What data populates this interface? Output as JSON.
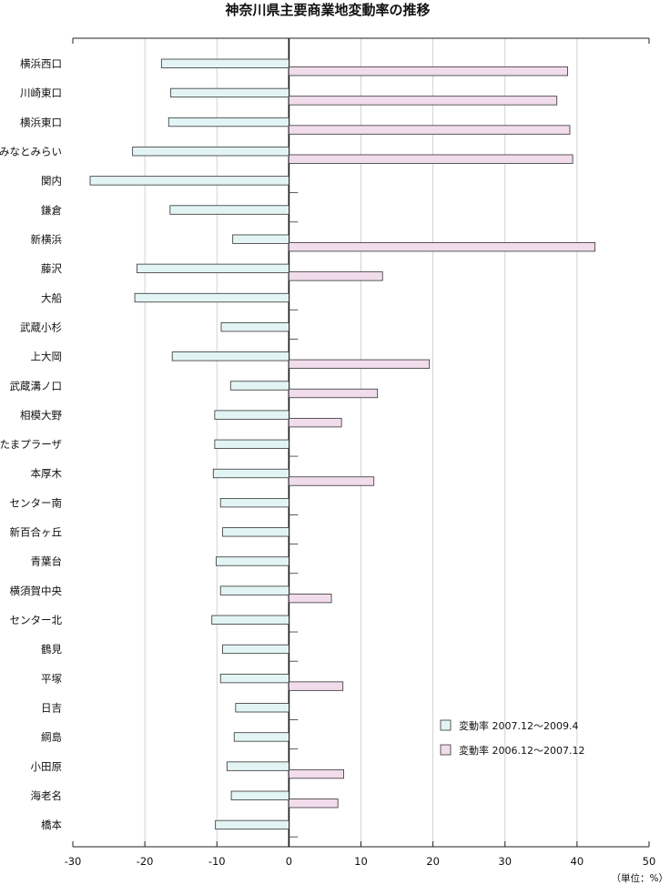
{
  "chart_data": {
    "type": "bar",
    "orientation": "horizontal",
    "title": "神奈川県主要商業地変動率の推移",
    "unit_label": "（単位：%）",
    "categories": [
      "横浜西口",
      "川崎東口",
      "横浜東口",
      "みなとみらい",
      "関内",
      "鎌倉",
      "新横浜",
      "藤沢",
      "大船",
      "武蔵小杉",
      "上大岡",
      "武蔵溝ノ口",
      "相模大野",
      "たまプラーザ",
      "本厚木",
      "センター南",
      "新百合ヶ丘",
      "青葉台",
      "横須賀中央",
      "センター北",
      "鶴見",
      "平塚",
      "日吉",
      "綱島",
      "小田原",
      "海老名",
      "橋本"
    ],
    "series": [
      {
        "name": "変動率 2007.12～2009.4",
        "color": "#e3f4f4",
        "values": [
          -17.7,
          -16.4,
          -16.7,
          -21.7,
          -27.6,
          -16.5,
          -7.8,
          -21.1,
          -21.4,
          -9.4,
          -16.2,
          -8.1,
          -10.3,
          -10.3,
          -10.5,
          -9.5,
          -9.2,
          -10.1,
          -9.5,
          -10.7,
          -9.2,
          -9.5,
          -7.4,
          -7.6,
          -8.6,
          -8.0,
          -10.2
        ]
      },
      {
        "name": "変動率 2006.12～2007.12",
        "color": "#f1dcec",
        "values": [
          38.7,
          37.2,
          39.0,
          39.4,
          0,
          0,
          42.5,
          13.0,
          0,
          0,
          19.5,
          12.3,
          7.3,
          0,
          11.8,
          0,
          0,
          0,
          5.9,
          0,
          0,
          7.5,
          0,
          0,
          7.6,
          6.8,
          0
        ]
      }
    ],
    "xlim": [
      -30,
      50
    ],
    "xticks": [
      -30,
      -20,
      -10,
      0,
      10,
      20,
      30,
      40,
      50
    ],
    "grid": true,
    "legend_position": "bottom-right"
  }
}
